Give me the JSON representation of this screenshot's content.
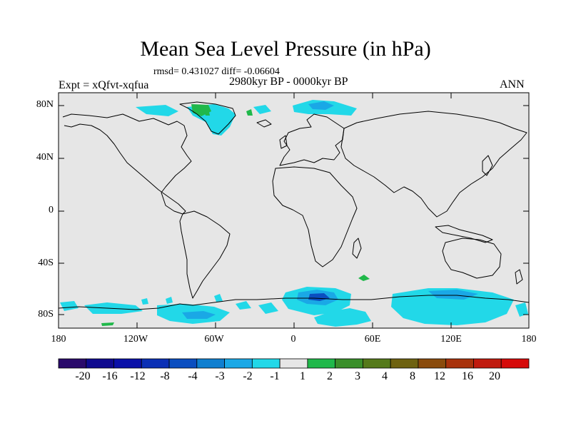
{
  "title": "Mean Sea Level Pressure (in hPa)",
  "stats_text": "rmsd= 0.431027 diff= -0.06604",
  "experiment": "Expt = xQfvt-xqfua",
  "period": "2980kyr BP - 0000kyr BP",
  "season": "ANN",
  "lat_labels": [
    "80N",
    "40N",
    "0",
    "40S",
    "80S"
  ],
  "lon_labels": [
    "180",
    "120W",
    "60W",
    "0",
    "60E",
    "120E",
    "180"
  ],
  "colorbar": {
    "labels": [
      "-20",
      "-16",
      "-12",
      "-8",
      "-4",
      "-3",
      "-2",
      "-1",
      "1",
      "2",
      "3",
      "4",
      "8",
      "12",
      "16",
      "20"
    ],
    "colors": [
      "#2a0a6b",
      "#0f0a8f",
      "#0a10a8",
      "#0a2fb5",
      "#0b4ec0",
      "#0f7fd0",
      "#1aa8e6",
      "#22d8e8",
      "#e6e6e6",
      "#20b84a",
      "#3a8f2a",
      "#557a1a",
      "#6e6210",
      "#8a4b0c",
      "#a8320c",
      "#c01a0e",
      "#d60a0a"
    ]
  },
  "colors": {
    "ocean_land_background": "#e6e6e6",
    "coastline": "#000000"
  }
}
